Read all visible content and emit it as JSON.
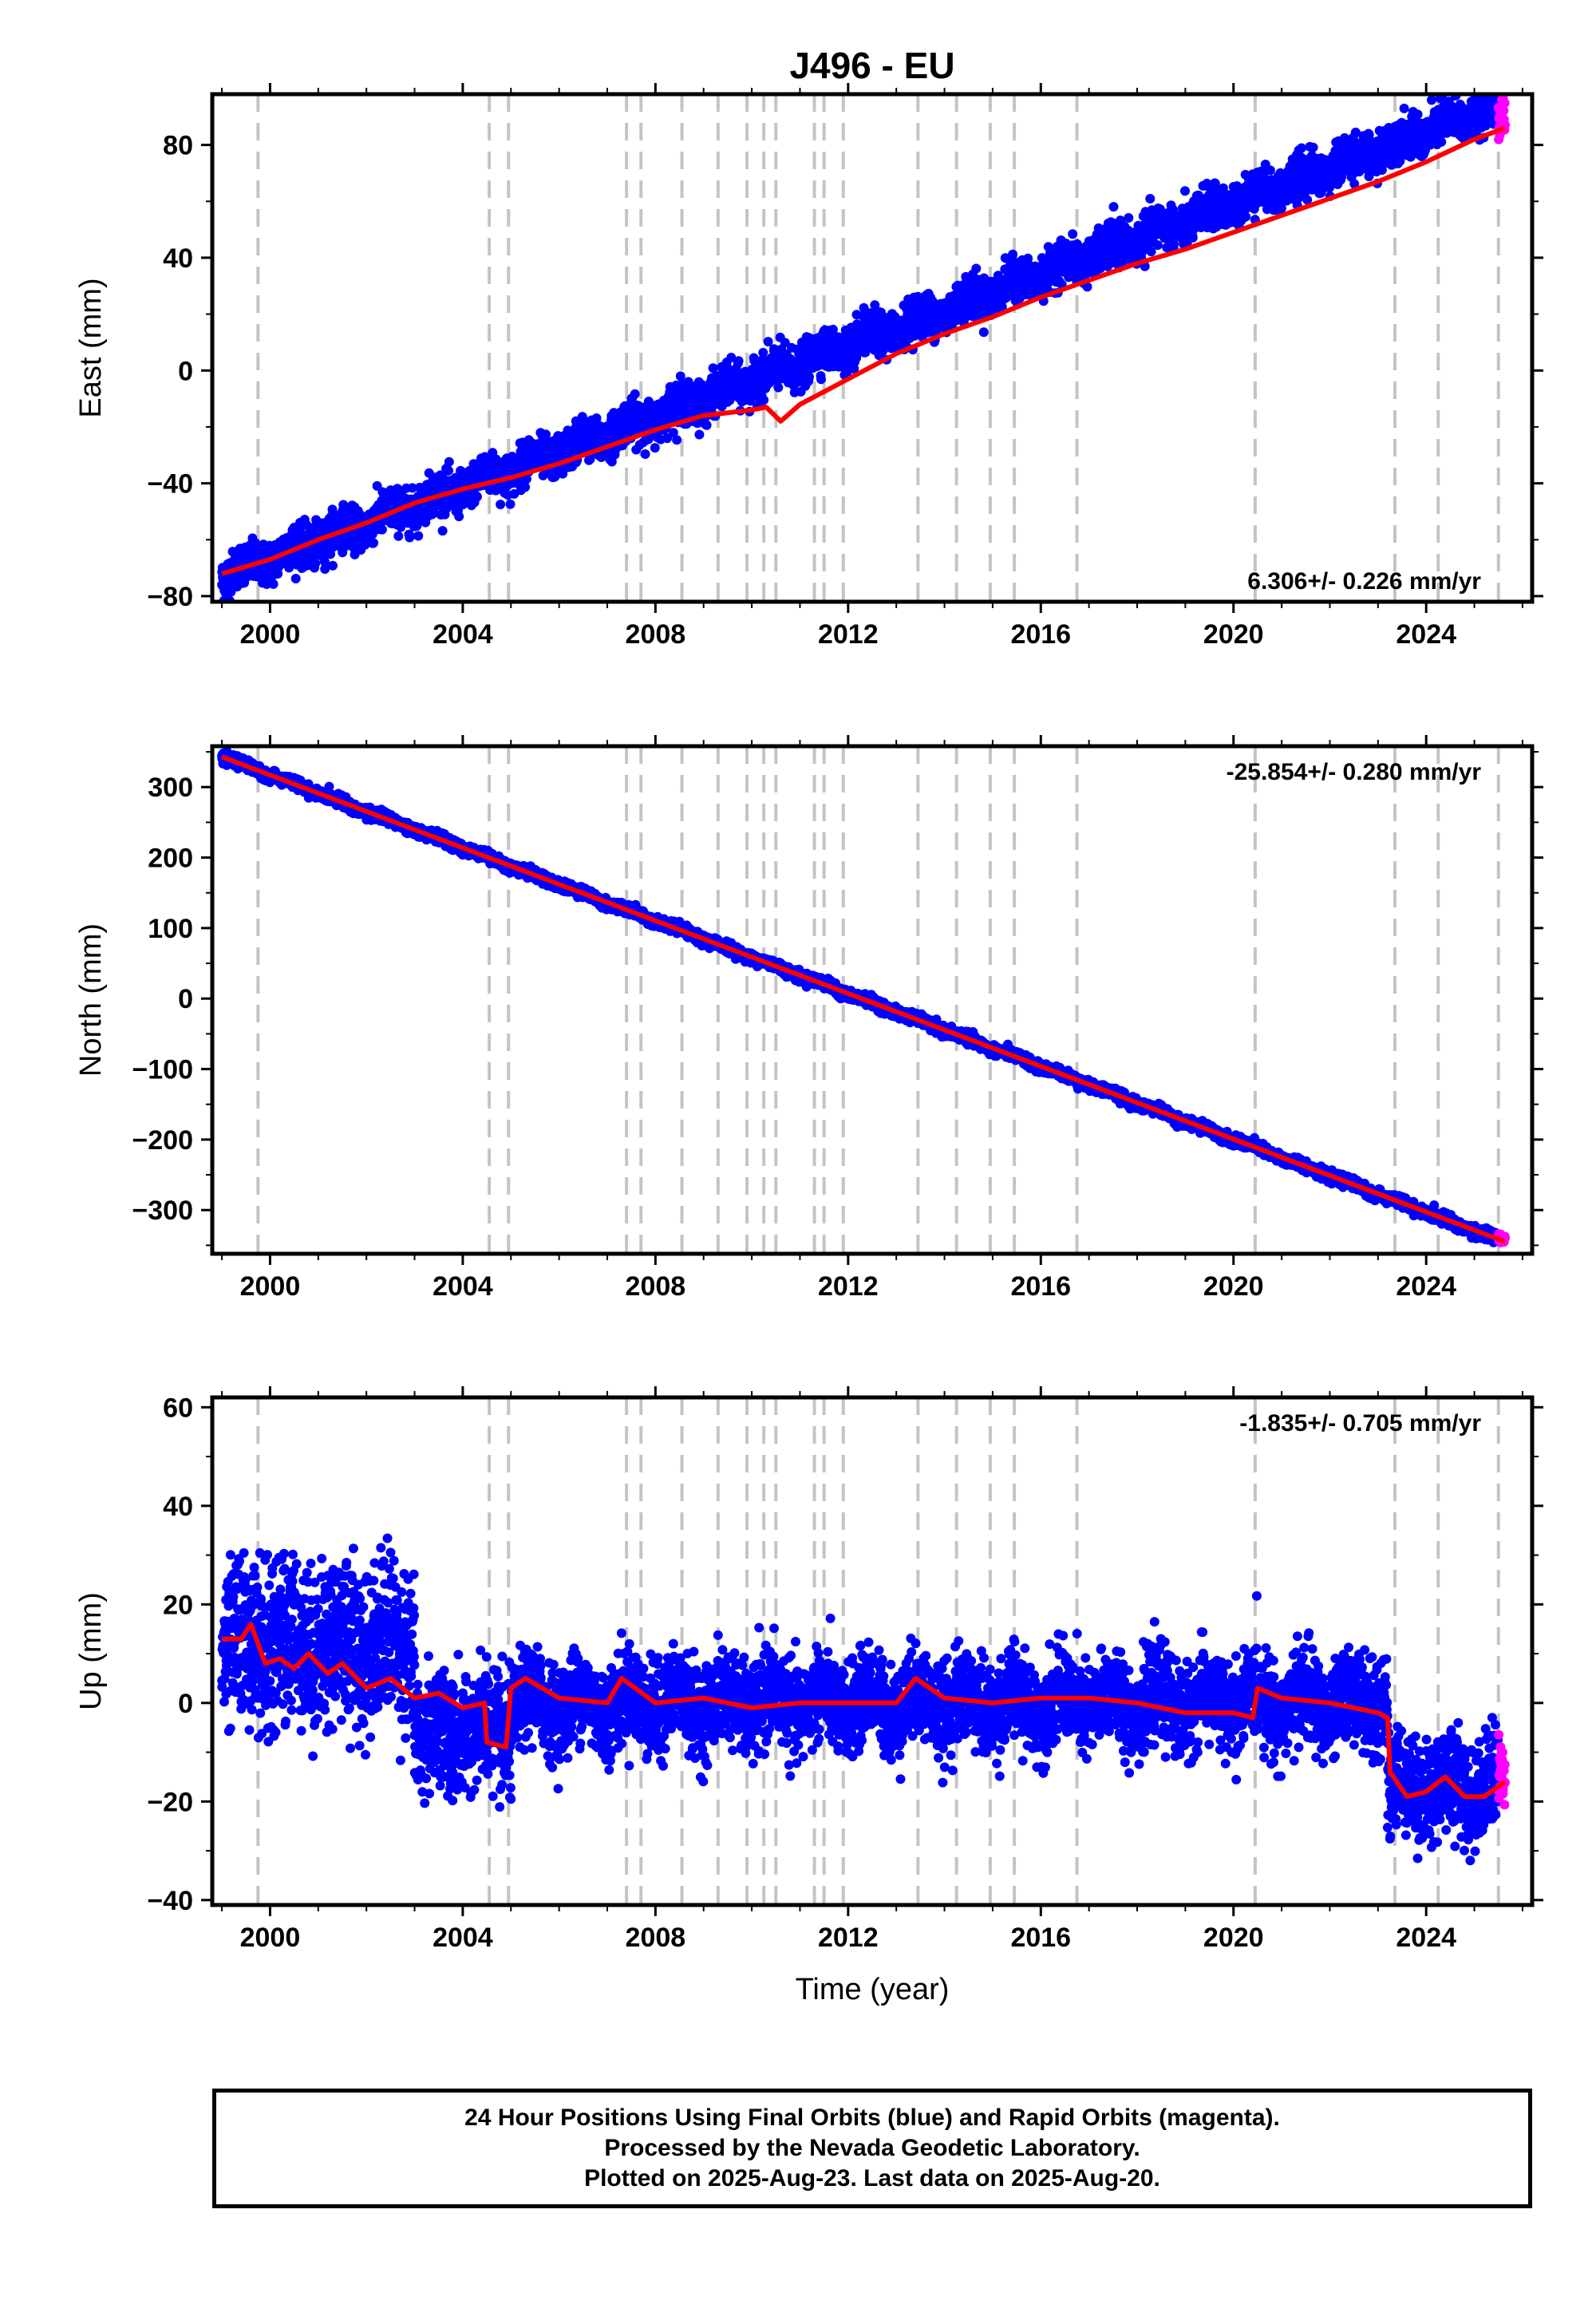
{
  "title": "J496 - EU",
  "chart_data": [
    {
      "type": "scatter",
      "panel": "east",
      "ylabel": "East (mm)",
      "xlabel": "",
      "xlim": [
        1998.8,
        2026.2
      ],
      "ylim": [
        -82,
        98
      ],
      "xticks": [
        2000,
        2004,
        2008,
        2012,
        2016,
        2020,
        2024
      ],
      "yticks": [
        -80,
        -40,
        0,
        40,
        80
      ],
      "rate_label": "6.306+/- 0.226 mm/yr",
      "rate_position": "bottom-right",
      "grid": false,
      "series": [
        {
          "name": "24 Hour Positions Using Final Orbits",
          "color": "#0000ff",
          "start": 1999.0,
          "end": 2025.5,
          "start_value": -73,
          "rate": 6.306,
          "scatter": 3.5
        },
        {
          "name": "Rapid Orbits",
          "color": "#ff00ff",
          "start": 2025.5,
          "end": 2025.64,
          "start_value": 88,
          "rate": 6.306,
          "scatter": 3
        },
        {
          "name": "model",
          "color": "#ff0000",
          "x": [
            1999.0,
            2000.0,
            2001.0,
            2002.0,
            2003.0,
            2004.0,
            2004.5,
            2005.0,
            2006.0,
            2007.0,
            2008.0,
            2009.0,
            2010.0,
            2010.3,
            2010.6,
            2011.0,
            2012.0,
            2013.0,
            2014.0,
            2015.0,
            2016.0,
            2017.0,
            2018.0,
            2019.0,
            2020.0,
            2021.0,
            2022.0,
            2023.0,
            2024.0,
            2025.0,
            2025.64
          ],
          "y": [
            -72,
            -67,
            -60,
            -54,
            -47,
            -42,
            -40,
            -38,
            -33,
            -27,
            -21,
            -16,
            -14,
            -13,
            -18,
            -12,
            -3,
            6,
            13,
            19,
            26,
            32,
            38,
            43,
            49,
            55,
            61,
            67,
            74,
            82,
            86
          ]
        }
      ]
    },
    {
      "type": "scatter",
      "panel": "north",
      "ylabel": "North (mm)",
      "xlabel": "",
      "xlim": [
        1998.8,
        2026.2
      ],
      "ylim": [
        -362,
        358
      ],
      "xticks": [
        2000,
        2004,
        2008,
        2012,
        2016,
        2020,
        2024
      ],
      "yticks": [
        -300,
        -200,
        -100,
        0,
        100,
        200,
        300
      ],
      "rate_label": "-25.854+/- 0.280 mm/yr",
      "rate_position": "top-right",
      "grid": false,
      "series": [
        {
          "name": "24 Hour Positions Using Final Orbits",
          "color": "#0000ff",
          "start": 1999.0,
          "end": 2025.5,
          "start_value": 343,
          "rate": -25.854,
          "scatter": 3.5
        },
        {
          "name": "Rapid Orbits",
          "color": "#ff00ff",
          "start": 2025.5,
          "end": 2025.64,
          "start_value": -338,
          "rate": -25.854,
          "scatter": 3
        },
        {
          "name": "model",
          "color": "#ff0000",
          "x": [
            1999.0,
            2025.64
          ],
          "y": [
            343,
            -345
          ]
        }
      ]
    },
    {
      "type": "scatter",
      "panel": "up",
      "ylabel": "Up (mm)",
      "xlabel": "Time (year)",
      "xlim": [
        1998.8,
        2026.2
      ],
      "ylim": [
        -41,
        62
      ],
      "xticks": [
        2000,
        2004,
        2008,
        2012,
        2016,
        2020,
        2024
      ],
      "yticks": [
        -40,
        -20,
        0,
        20,
        40,
        60
      ],
      "rate_label": "-1.835+/- 0.705 mm/yr",
      "rate_position": "top-right",
      "grid": false,
      "segments": [
        {
          "start": 1999.0,
          "end": 2003.0,
          "mean": 12,
          "scatter": 8
        },
        {
          "start": 2003.0,
          "end": 2005.0,
          "mean": -6,
          "scatter": 6
        },
        {
          "start": 2005.0,
          "end": 2023.2,
          "mean": 0,
          "scatter": 4.5
        },
        {
          "start": 2023.2,
          "end": 2025.5,
          "mean": -17,
          "scatter": 5
        }
      ],
      "series": [
        {
          "name": "24 Hour Positions Using Final Orbits",
          "color": "#0000ff"
        },
        {
          "name": "Rapid Orbits",
          "color": "#ff00ff",
          "start": 2025.5,
          "end": 2025.64,
          "mean": -14,
          "scatter": 4
        },
        {
          "name": "model",
          "color": "#ff0000",
          "x": [
            1999.0,
            1999.4,
            1999.6,
            1999.9,
            2000.2,
            2000.5,
            2000.8,
            2001.2,
            2001.5,
            2002.0,
            2002.5,
            2003.0,
            2003.5,
            2004.0,
            2004.45,
            2004.5,
            2004.9,
            2005.0,
            2005.3,
            2006.0,
            2007.0,
            2007.3,
            2008.0,
            2009.0,
            2010.0,
            2011.0,
            2012.0,
            2013.0,
            2013.4,
            2014.0,
            2015.0,
            2016.0,
            2017.0,
            2018.0,
            2019.0,
            2020.0,
            2020.4,
            2020.5,
            2021.0,
            2022.0,
            2023.0,
            2023.2,
            2023.25,
            2023.6,
            2024.0,
            2024.4,
            2024.8,
            2025.2,
            2025.64
          ],
          "y": [
            13,
            13,
            16,
            8,
            9,
            7,
            10,
            6,
            8,
            3,
            5,
            1,
            2,
            -1,
            0,
            -8,
            -9,
            3,
            5,
            1,
            0,
            5,
            0,
            1,
            -1,
            0,
            0,
            0,
            5,
            1,
            0,
            1,
            1,
            0,
            -2,
            -2,
            -3,
            3,
            1,
            0,
            -2,
            -3,
            -14,
            -19,
            -18,
            -15,
            -19,
            -19,
            -16
          ]
        }
      ]
    }
  ],
  "vertical_dashed_lines": [
    1999.75,
    2004.55,
    2004.95,
    2007.4,
    2007.7,
    2008.55,
    2009.3,
    2009.9,
    2010.25,
    2010.5,
    2011.3,
    2011.5,
    2011.9,
    2013.45,
    2014.25,
    2014.95,
    2015.45,
    2016.75,
    2020.45,
    2023.35,
    2024.25,
    2025.5
  ],
  "caption": [
    "24 Hour Positions Using Final Orbits (blue) and Rapid Orbits (magenta).",
    "Processed by the Nevada Geodetic Laboratory.",
    "Plotted on 2025-Aug-23. Last data on 2025-Aug-20."
  ]
}
